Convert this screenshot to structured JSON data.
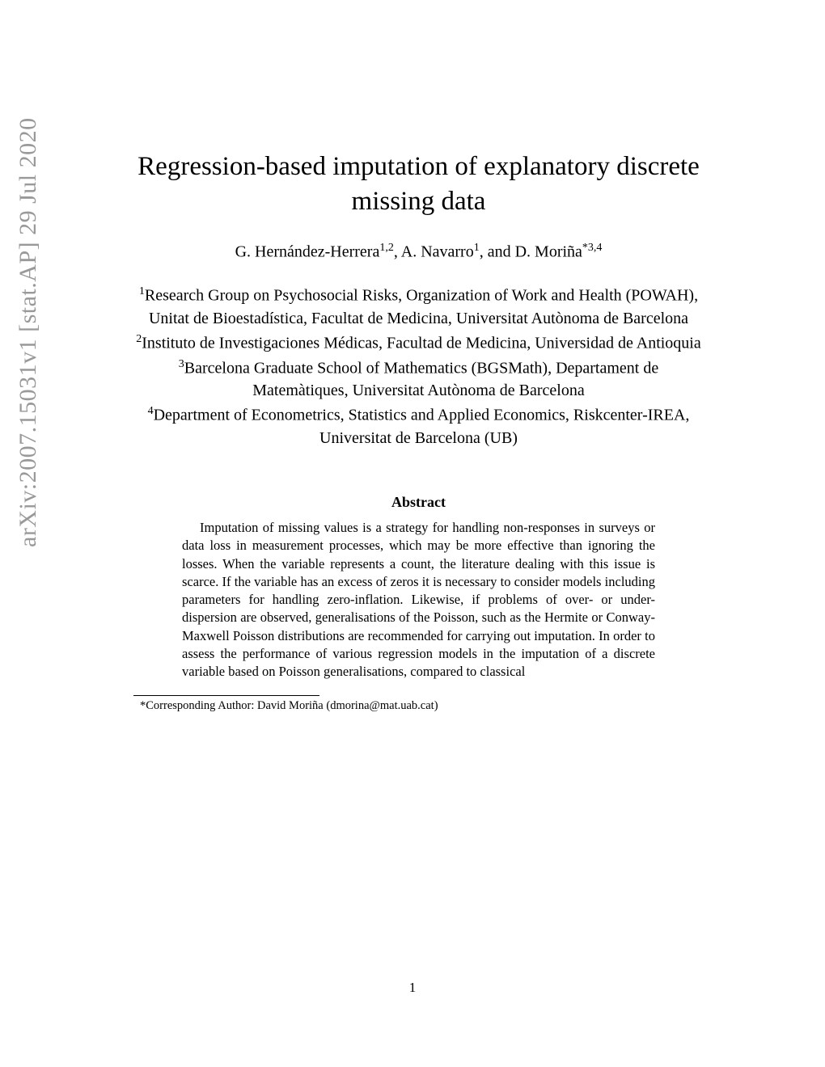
{
  "arxiv_stamp": "arXiv:2007.15031v1  [stat.AP]  29 Jul 2020",
  "title": "Regression-based imputation of explanatory discrete missing data",
  "authors_html": "G. Hernández-Herrera<sup>1,2</sup>, A. Navarro<sup>1</sup>, and D. Moriña<sup>*3,4</sup>",
  "affiliations": {
    "a1": "<sup>1</sup>Research Group on Psychosocial Risks, Organization of Work and Health (POWAH), Unitat de Bioestadística, Facultat de Medicina, Universitat Autònoma de Barcelona",
    "a2": "<sup>2</sup>Instituto de Investigaciones Médicas, Facultad de Medicina, Universidad de Antioquia",
    "a3": "<sup>3</sup>Barcelona Graduate School of Mathematics (BGSMath), Departament de Matemàtiques, Universitat Autònoma de Barcelona",
    "a4": "<sup>4</sup>Department of Econometrics, Statistics and Applied Economics, Riskcenter-IREA, Universitat de Barcelona (UB)"
  },
  "abstract_heading": "Abstract",
  "abstract_body": "Imputation of missing values is a strategy for handling non-responses in surveys or data loss in measurement processes, which may be more effective than ignoring the losses. When the variable represents a count, the literature dealing with this issue is scarce. If the variable has an excess of zeros it is necessary to consider models including parameters for handling zero-inflation. Likewise, if problems of over- or under-dispersion are observed, generalisations of the Poisson, such as the Hermite or Conway-Maxwell Poisson distributions are recommended for carrying out imputation. In order to assess the performance of various regression models in the imputation of a discrete variable based on Poisson generalisations, compared to classical",
  "footnote": "*Corresponding Author: David Moriña (dmorina@mat.uab.cat)",
  "page_number": "1"
}
